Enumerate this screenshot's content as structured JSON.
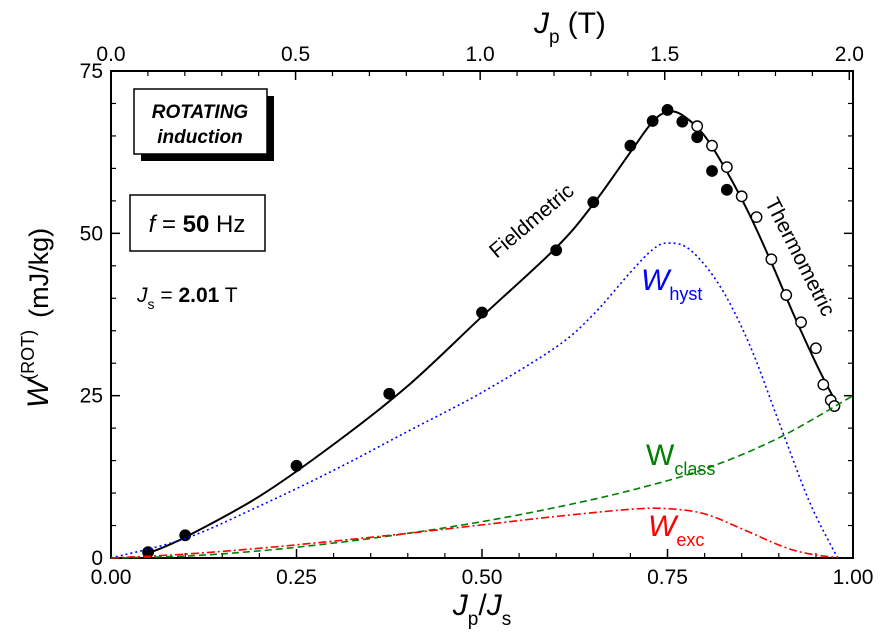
{
  "chart_data": {
    "type": "line",
    "x_axis_bottom": {
      "label_main": "J",
      "label_sub1": "p",
      "label_slash": "/",
      "label_main2": "J",
      "label_sub2": "s",
      "range": [
        0,
        1
      ],
      "ticks": [
        0,
        0.25,
        0.5,
        0.75,
        1.0
      ],
      "tick_labels": [
        "0.00",
        "0.25",
        "0.50",
        "0.75",
        "1.00"
      ]
    },
    "x_axis_top": {
      "label_main": "J",
      "label_sub": "p",
      "label_unit": "(T)",
      "range": [
        0,
        2.01
      ],
      "ticks": [
        0,
        0.5,
        1.0,
        1.5,
        2.0
      ],
      "tick_labels": [
        "0.0",
        "0.5",
        "1.0",
        "1.5",
        "2.0"
      ]
    },
    "y_axis": {
      "label_main": "W",
      "label_sup": "(ROT)",
      "label_unit": "(mJ/kg)",
      "range": [
        0,
        75
      ],
      "ticks": [
        0,
        25,
        50,
        75
      ],
      "tick_labels": [
        "0",
        "25",
        "50",
        "75"
      ]
    },
    "series": [
      {
        "name": "W_total_fit",
        "style": "solid",
        "color": "#000000",
        "x": [
          0.05,
          0.1,
          0.2,
          0.3,
          0.4,
          0.5,
          0.6,
          0.65,
          0.7,
          0.73,
          0.75,
          0.77,
          0.8,
          0.83,
          0.86,
          0.89,
          0.92,
          0.95,
          0.97,
          0.98
        ],
        "y": [
          0.7,
          3.2,
          9.5,
          17.5,
          26.5,
          37.2,
          47.8,
          54.5,
          62.5,
          67.2,
          68.7,
          68.2,
          65.0,
          59.5,
          53.0,
          45.5,
          37.5,
          30.0,
          25.5,
          23.5
        ]
      },
      {
        "name": "Fieldmetric",
        "style": "filled-dots",
        "color": "#000000",
        "x": [
          0.05,
          0.1,
          0.25,
          0.375,
          0.5,
          0.6,
          0.65,
          0.7,
          0.73,
          0.75,
          0.77,
          0.79,
          0.81,
          0.83
        ],
        "y": [
          0.9,
          3.5,
          14.2,
          25.3,
          37.8,
          47.4,
          54.8,
          63.5,
          67.3,
          69.0,
          67.2,
          64.8,
          59.6,
          56.7
        ]
      },
      {
        "name": "Thermometric",
        "style": "open-dots",
        "color": "#000000",
        "x": [
          0.79,
          0.81,
          0.83,
          0.85,
          0.87,
          0.89,
          0.91,
          0.93,
          0.95,
          0.96,
          0.97,
          0.975
        ],
        "y": [
          66.5,
          63.5,
          60.2,
          55.7,
          52.5,
          46.0,
          40.5,
          36.3,
          32.3,
          26.7,
          24.3,
          23.4
        ]
      },
      {
        "name": "W_hyst",
        "style": "dotted",
        "color": "#0000ff",
        "x": [
          0,
          0.1,
          0.2,
          0.3,
          0.4,
          0.5,
          0.6,
          0.65,
          0.7,
          0.73,
          0.75,
          0.78,
          0.82,
          0.86,
          0.9,
          0.94,
          0.97,
          0.98
        ],
        "y": [
          0,
          3.0,
          8.0,
          13.5,
          19.5,
          25.5,
          32.5,
          37.5,
          44.0,
          47.5,
          48.5,
          47.5,
          42.0,
          33.0,
          21.0,
          9.0,
          2.0,
          0
        ]
      },
      {
        "name": "W_class",
        "style": "dashed",
        "color": "#008000",
        "x": [
          0,
          0.1,
          0.2,
          0.3,
          0.4,
          0.5,
          0.6,
          0.7,
          0.8,
          0.9,
          1.0
        ],
        "y": [
          0,
          0.3,
          1.1,
          2.3,
          3.8,
          5.6,
          7.8,
          10.4,
          13.7,
          18.5,
          25.0
        ]
      },
      {
        "name": "W_exc",
        "style": "dash-dot",
        "color": "#ff0000",
        "x": [
          0,
          0.1,
          0.2,
          0.3,
          0.4,
          0.5,
          0.6,
          0.7,
          0.75,
          0.8,
          0.85,
          0.9,
          0.93,
          0.96,
          0.98
        ],
        "y": [
          0,
          0.6,
          1.5,
          2.6,
          3.8,
          5.1,
          6.4,
          7.5,
          7.6,
          6.8,
          4.5,
          2.0,
          0.9,
          0.3,
          0.1
        ]
      }
    ],
    "annotations": {
      "fieldmetric": "Fieldmetric",
      "thermometric": "Thermometric",
      "w_hyst_main": "W",
      "w_hyst_sub": "hyst",
      "w_class_main": "W",
      "w_class_sub": "class",
      "w_exc_main": "W",
      "w_exc_sub": "exc"
    },
    "boxes": {
      "rotating_line1": "ROTATING",
      "rotating_line2": "induction",
      "freq_prefix": "f",
      "freq_eq": " = ",
      "freq_value": "50",
      "freq_unit": " Hz",
      "js_main": "J",
      "js_sub": "s",
      "js_eq": " = ",
      "js_value": "2.01",
      "js_unit": " T"
    },
    "colors": {
      "hyst": "#0000ff",
      "class": "#008000",
      "exc": "#ff0000",
      "fit": "#000000"
    }
  }
}
